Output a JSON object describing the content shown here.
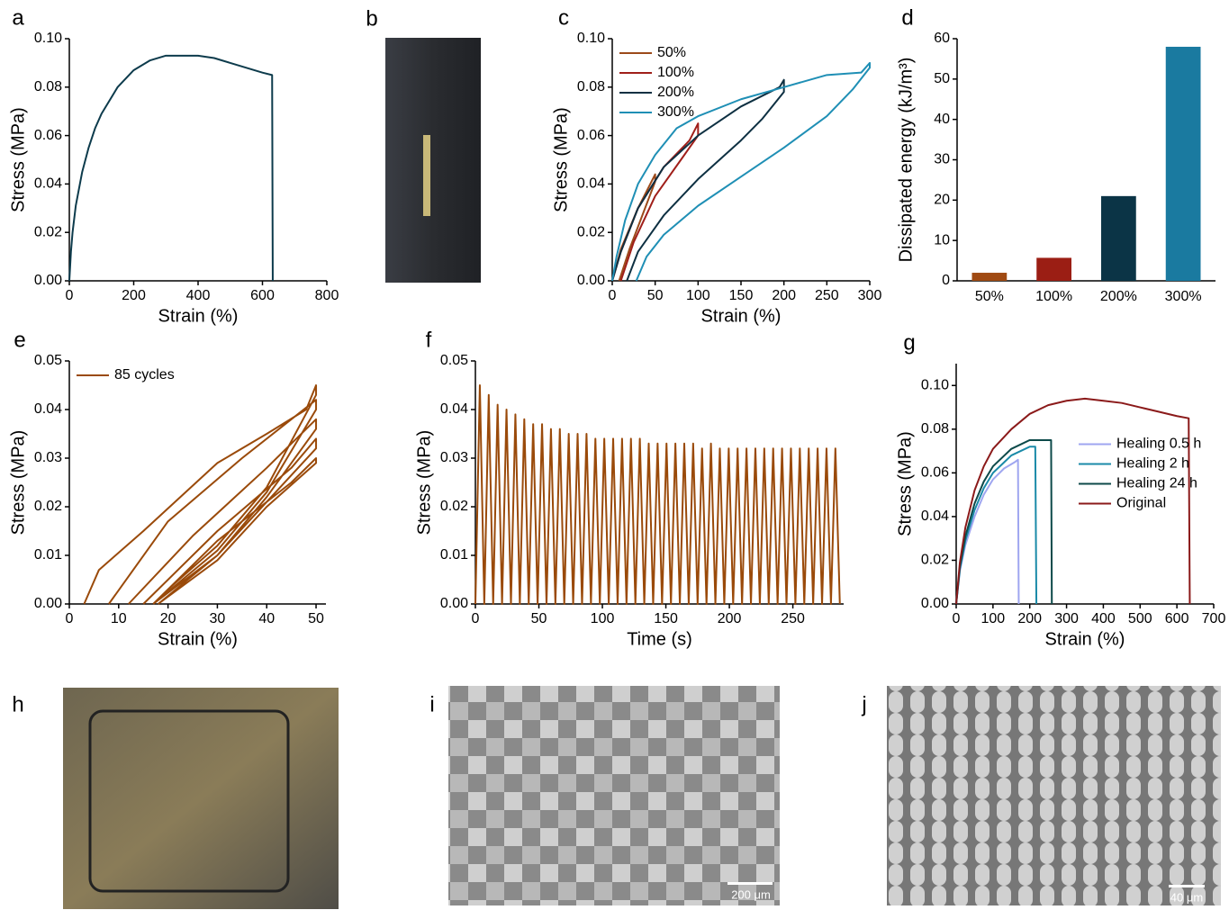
{
  "chart_data": [
    {
      "type": "line",
      "label": "a",
      "xlabel": "Strain (%)",
      "ylabel": "Stress (MPa)",
      "xlim": [
        0,
        800
      ],
      "xticks": [
        0,
        200,
        400,
        600,
        800
      ],
      "ylim": [
        0,
        0.1
      ],
      "yticks": [
        {
          "value": 0,
          "label": "0.00"
        },
        0.02,
        0.04,
        0.06,
        0.08,
        {
          "value": 0.1,
          "label": "0.10"
        }
      ],
      "series": [
        {
          "color": "#0d3b4c",
          "x": [
            0,
            5,
            10,
            20,
            40,
            60,
            80,
            100,
            150,
            200,
            250,
            300,
            350,
            400,
            450,
            500,
            550,
            600,
            630,
            632
          ],
          "values": [
            0,
            0.012,
            0.02,
            0.031,
            0.045,
            0.055,
            0.063,
            0.069,
            0.08,
            0.087,
            0.091,
            0.093,
            0.093,
            0.093,
            0.092,
            0.09,
            0.088,
            0.086,
            0.085,
            0
          ]
        }
      ]
    },
    {
      "type": "line",
      "label": "c",
      "xlabel": "Strain (%)",
      "ylabel": "Stress (MPa)",
      "legend": "upper left",
      "xlim": [
        0,
        300
      ],
      "xticks": [
        0,
        50,
        100,
        150,
        200,
        250,
        300
      ],
      "ylim": [
        0,
        0.1
      ],
      "yticks": [
        {
          "value": 0,
          "label": "0.00"
        },
        0.02,
        0.04,
        0.06,
        0.08,
        {
          "value": 0.1,
          "label": "0.10"
        }
      ],
      "series": [
        {
          "name": "50%",
          "color": "#9c4a1a",
          "x": [
            0,
            10,
            30,
            50,
            50,
            35,
            20,
            8
          ],
          "values": [
            0,
            0.013,
            0.03,
            0.044,
            0.041,
            0.027,
            0.013,
            0
          ]
        },
        {
          "name": "100%",
          "color": "#a01f1a",
          "x": [
            0,
            10,
            30,
            60,
            90,
            100,
            100,
            80,
            50,
            25,
            10
          ],
          "values": [
            0,
            0.012,
            0.03,
            0.047,
            0.058,
            0.065,
            0.06,
            0.05,
            0.035,
            0.016,
            0
          ]
        },
        {
          "name": "200%",
          "color": "#0e3042",
          "x": [
            0,
            10,
            30,
            60,
            100,
            150,
            195,
            200,
            200,
            175,
            150,
            100,
            60,
            30,
            17
          ],
          "values": [
            0,
            0.012,
            0.03,
            0.047,
            0.06,
            0.072,
            0.08,
            0.083,
            0.078,
            0.067,
            0.058,
            0.042,
            0.027,
            0.012,
            0
          ]
        },
        {
          "name": "300%",
          "color": "#1f8fb5",
          "x": [
            0,
            5,
            15,
            30,
            50,
            75,
            100,
            150,
            200,
            250,
            290,
            300,
            300,
            280,
            250,
            200,
            150,
            100,
            60,
            40,
            28
          ],
          "values": [
            0,
            0.01,
            0.025,
            0.04,
            0.052,
            0.063,
            0.068,
            0.075,
            0.08,
            0.085,
            0.086,
            0.09,
            0.088,
            0.079,
            0.068,
            0.055,
            0.043,
            0.031,
            0.019,
            0.01,
            0
          ]
        }
      ]
    },
    {
      "type": "bar",
      "label": "d",
      "ylabel": "Dissipated energy (kJ/m³)",
      "categories": [
        "50%",
        "100%",
        "200%",
        "300%"
      ],
      "values": [
        2,
        5.7,
        21,
        58
      ],
      "colors": [
        "#a04a12",
        "#9b1e14",
        "#0b3446",
        "#1a7aa0"
      ],
      "ylim": [
        0,
        60
      ],
      "yticks": [
        0,
        10,
        20,
        30,
        40,
        50,
        60
      ]
    },
    {
      "type": "line",
      "label": "e",
      "xlabel": "Strain (%)",
      "ylabel": "Stress (MPa)",
      "legend": "upper left",
      "xlim": [
        0,
        52
      ],
      "xticks": [
        0,
        10,
        20,
        30,
        40,
        50
      ],
      "ylim": [
        0,
        0.05
      ],
      "yticks": [
        {
          "value": 0,
          "label": "0.00"
        },
        0.01,
        0.02,
        0.03,
        0.04,
        0.05
      ],
      "series": [
        {
          "name": "85 cycles",
          "color": "#9a4a0a",
          "x": [
            3,
            6,
            15,
            30,
            40,
            48,
            50,
            50,
            40,
            30,
            20,
            17,
            null,
            8,
            20,
            35,
            50,
            50,
            40,
            30,
            17,
            null,
            12,
            25,
            40,
            50,
            50,
            40,
            30,
            17,
            null,
            15,
            30,
            45,
            50,
            50,
            40,
            30,
            18,
            null,
            17,
            30,
            45,
            50,
            50,
            40,
            30,
            18
          ],
          "values": [
            0,
            0.007,
            0.015,
            0.029,
            0.035,
            0.04,
            0.045,
            0.043,
            0.024,
            0.012,
            0.003,
            0,
            null,
            0,
            0.017,
            0.03,
            0.042,
            0.04,
            0.023,
            0.011,
            0,
            null,
            0,
            0.014,
            0.028,
            0.038,
            0.036,
            0.022,
            0.01,
            0,
            null,
            0,
            0.015,
            0.028,
            0.034,
            0.032,
            0.021,
            0.01,
            0,
            null,
            0,
            0.013,
            0.025,
            0.03,
            0.029,
            0.02,
            0.009,
            0
          ]
        }
      ]
    },
    {
      "type": "line",
      "label": "f",
      "xlabel": "Time (s)",
      "ylabel": "Stress (MPa)",
      "xlim": [
        0,
        290
      ],
      "xticks": [
        0,
        50,
        100,
        150,
        200,
        250
      ],
      "ylim": [
        0,
        0.05
      ],
      "yticks": [
        {
          "value": 0,
          "label": "0.00"
        },
        0.01,
        0.02,
        0.03,
        0.04,
        0.05
      ],
      "series": [
        {
          "color": "#9a4a0a",
          "x": [
            0,
            3.5,
            7,
            10.5,
            14,
            17.5,
            21,
            24.5,
            28,
            31.5,
            35,
            38.5,
            42,
            45.5,
            49,
            52.5,
            56,
            59.5,
            63,
            66.5,
            70,
            73.5,
            77,
            80.5,
            84,
            87.5,
            91,
            94.5,
            98,
            101.5,
            105,
            108.5,
            112,
            115.5,
            119,
            122.5,
            126,
            129.5,
            133,
            136.5,
            140,
            143.5,
            147,
            150.5,
            154,
            157.5,
            161,
            164.5,
            168,
            171.5,
            175,
            178.5,
            182,
            185.5,
            189,
            192.5,
            196,
            199.5,
            203,
            206.5,
            210,
            213.5,
            217,
            220.5,
            224,
            227.5,
            231,
            234.5,
            238,
            241.5,
            245,
            248.5,
            252,
            255.5,
            259,
            262.5,
            266,
            269.5,
            273,
            276.5,
            280,
            283.5,
            287
          ],
          "values": [
            0,
            0.045,
            0,
            0.043,
            0,
            0.041,
            0,
            0.04,
            0,
            0.039,
            0,
            0.038,
            0,
            0.037,
            0,
            0.037,
            0,
            0.036,
            0,
            0.036,
            0,
            0.035,
            0,
            0.035,
            0,
            0.035,
            0,
            0.034,
            0,
            0.034,
            0,
            0.034,
            0,
            0.034,
            0,
            0.034,
            0,
            0.034,
            0,
            0.033,
            0,
            0.033,
            0,
            0.033,
            0,
            0.033,
            0,
            0.033,
            0,
            0.033,
            0,
            0.032,
            0,
            0.033,
            0,
            0.032,
            0,
            0.032,
            0,
            0.032,
            0,
            0.032,
            0,
            0.032,
            0,
            0.032,
            0,
            0.032,
            0,
            0.032,
            0,
            0.032,
            0,
            0.032,
            0,
            0.032,
            0,
            0.032,
            0,
            0.032,
            0,
            0.032,
            0
          ]
        }
      ]
    },
    {
      "type": "line",
      "label": "g",
      "xlabel": "Strain (%)",
      "ylabel": "Stress (MPa)",
      "legend": "center right",
      "xlim": [
        0,
        700
      ],
      "xticks": [
        0,
        100,
        200,
        300,
        400,
        500,
        600,
        700
      ],
      "ylim": [
        0,
        0.11
      ],
      "yticks": [
        {
          "value": 0,
          "label": "0.00"
        },
        0.02,
        0.04,
        0.06,
        0.08,
        {
          "value": 0.1,
          "label": "0.10"
        }
      ],
      "series": [
        {
          "name": "Healing 0.5 h",
          "color": "#9fa6f0",
          "x": [
            0,
            10,
            25,
            50,
            75,
            100,
            130,
            160,
            168,
            170
          ],
          "values": [
            0,
            0.015,
            0.027,
            0.04,
            0.05,
            0.057,
            0.062,
            0.065,
            0.066,
            0
          ]
        },
        {
          "name": "Healing 2 h",
          "color": "#1a8aa8",
          "x": [
            0,
            10,
            25,
            50,
            75,
            100,
            150,
            200,
            215,
            218
          ],
          "values": [
            0,
            0.016,
            0.029,
            0.043,
            0.053,
            0.06,
            0.068,
            0.072,
            0.072,
            0
          ]
        },
        {
          "name": "Healing 24 h",
          "color": "#0d4a4a",
          "x": [
            0,
            10,
            25,
            50,
            75,
            100,
            150,
            200,
            250,
            258,
            260
          ],
          "values": [
            0,
            0.017,
            0.031,
            0.046,
            0.056,
            0.063,
            0.071,
            0.075,
            0.075,
            0.075,
            0
          ]
        },
        {
          "name": "Original",
          "color": "#8b1a1a",
          "x": [
            0,
            10,
            25,
            50,
            75,
            100,
            150,
            200,
            250,
            300,
            350,
            400,
            450,
            500,
            550,
            600,
            632,
            635
          ],
          "values": [
            0,
            0.019,
            0.035,
            0.052,
            0.063,
            0.071,
            0.08,
            0.087,
            0.091,
            0.093,
            0.094,
            0.093,
            0.092,
            0.09,
            0.088,
            0.086,
            0.085,
            0
          ]
        }
      ]
    }
  ],
  "images": [
    {
      "label": "b"
    },
    {
      "label": "h"
    },
    {
      "label": "i",
      "scale_bar": "200 μm"
    },
    {
      "label": "j",
      "scale_bar": "40 μm"
    }
  ]
}
